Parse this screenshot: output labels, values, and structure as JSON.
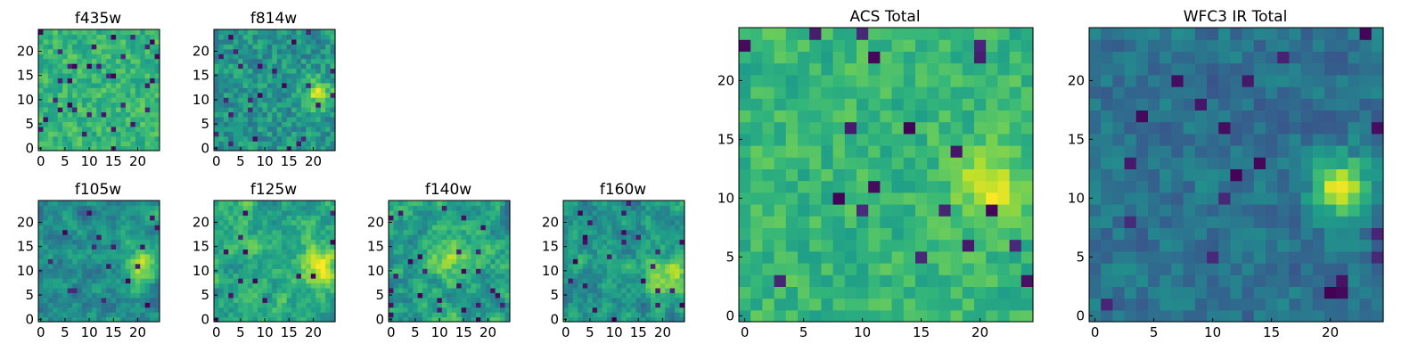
{
  "figure": {
    "colormap": "viridis",
    "colors": {
      "low": "#440154",
      "mid": "#21918c",
      "high": "#fde725",
      "frame": "#000000",
      "background": "#ffffff"
    }
  },
  "chart_data": [
    {
      "type": "heatmap",
      "title": "f435w",
      "grid": [
        25,
        25
      ],
      "xlim": [
        0,
        24
      ],
      "ylim": [
        0,
        24
      ],
      "x_ticks": [
        "0",
        "5",
        "10",
        "15",
        "20"
      ],
      "y_ticks": [
        "0",
        "5",
        "10",
        "15",
        "20"
      ],
      "colormap": "viridis",
      "bright_region": "none",
      "character": "bright, pixel noise"
    },
    {
      "type": "heatmap",
      "title": "f814w",
      "grid": [
        25,
        25
      ],
      "xlim": [
        0,
        24
      ],
      "ylim": [
        0,
        24
      ],
      "x_ticks": [
        "0",
        "5",
        "10",
        "15",
        "20"
      ],
      "y_ticks": [
        "0",
        "5",
        "10",
        "15",
        "20"
      ],
      "colormap": "viridis",
      "bright_region": "center-right",
      "character": "pixel noise"
    },
    {
      "type": "heatmap",
      "title": "f105w",
      "grid": [
        25,
        25
      ],
      "xlim": [
        0,
        24
      ],
      "ylim": [
        0,
        24
      ],
      "x_ticks": [
        "0",
        "5",
        "10",
        "15",
        "20"
      ],
      "y_ticks": [
        "0",
        "5",
        "10",
        "15",
        "20"
      ],
      "colormap": "viridis",
      "bright_region": "center-right",
      "character": "smooth noise"
    },
    {
      "type": "heatmap",
      "title": "f125w",
      "grid": [
        25,
        25
      ],
      "xlim": [
        0,
        24
      ],
      "ylim": [
        0,
        24
      ],
      "x_ticks": [
        "0",
        "5",
        "10",
        "15",
        "20"
      ],
      "y_ticks": [
        "0",
        "5",
        "10",
        "15",
        "20"
      ],
      "colormap": "viridis",
      "bright_region": "center-right",
      "character": "smooth noise"
    },
    {
      "type": "heatmap",
      "title": "f140w",
      "grid": [
        25,
        25
      ],
      "xlim": [
        0,
        24
      ],
      "ylim": [
        0,
        24
      ],
      "x_ticks": [
        "0",
        "5",
        "10",
        "15",
        "20"
      ],
      "y_ticks": [
        "0",
        "5",
        "10",
        "15",
        "20"
      ],
      "colormap": "viridis",
      "bright_region": "center",
      "character": "smooth noise"
    },
    {
      "type": "heatmap",
      "title": "f160w",
      "grid": [
        25,
        25
      ],
      "xlim": [
        0,
        24
      ],
      "ylim": [
        0,
        24
      ],
      "x_ticks": [
        "0",
        "5",
        "10",
        "15",
        "20"
      ],
      "y_ticks": [
        "0",
        "5",
        "10",
        "15",
        "20"
      ],
      "colormap": "viridis",
      "bright_region": "center-right",
      "character": "smooth noise"
    },
    {
      "type": "heatmap",
      "title": "ACS Total",
      "grid": [
        25,
        25
      ],
      "xlim": [
        0,
        24
      ],
      "ylim": [
        0,
        24
      ],
      "x_ticks": [
        "0",
        "5",
        "10",
        "15",
        "20"
      ],
      "y_ticks": [
        "0",
        "5",
        "10",
        "15",
        "20"
      ],
      "colormap": "viridis",
      "bright_region": "right (x 20-23, y 9-13)",
      "character": "pixel noise"
    },
    {
      "type": "heatmap",
      "title": "WFC3 IR Total",
      "grid": [
        25,
        25
      ],
      "xlim": [
        0,
        24
      ],
      "ylim": [
        0,
        24
      ],
      "x_ticks": [
        "0",
        "5",
        "10",
        "15",
        "20"
      ],
      "y_ticks": [
        "0",
        "5",
        "10",
        "15",
        "20"
      ],
      "colormap": "viridis",
      "bright_region": "right (x 20-23, y 9-13)",
      "character": "dim, compact bright source"
    }
  ]
}
